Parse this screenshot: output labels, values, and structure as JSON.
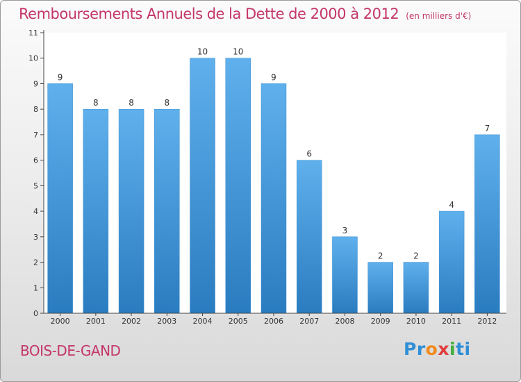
{
  "header": {
    "title": "Remboursements Annuels de la Dette de 2000 à 2012",
    "unit": "(en milliers d'€)"
  },
  "footer": {
    "entity": "BOIS-DE-GAND",
    "logo": [
      "Pr",
      "o",
      "x",
      "i",
      "ti"
    ]
  },
  "colors": {
    "title": "#c4366a",
    "bar_light": "#5fb0ec",
    "bar_dark": "#2a7cc0",
    "plot_background": "#ffffff"
  },
  "chart_data": {
    "type": "bar",
    "title": "Remboursements Annuels de la Dette de 2000 à 2012",
    "xlabel": "",
    "ylabel": "",
    "categories": [
      "2000",
      "2001",
      "2002",
      "2003",
      "2004",
      "2005",
      "2006",
      "2007",
      "2008",
      "2009",
      "2010",
      "2011",
      "2012"
    ],
    "values": [
      9,
      8,
      8,
      8,
      10,
      10,
      9,
      6,
      3,
      2,
      2,
      4,
      7
    ],
    "ylim": [
      0,
      11
    ],
    "yticks": [
      "0",
      "1",
      "2",
      "3",
      "4",
      "5",
      "6",
      "7",
      "8",
      "9",
      "10",
      "11"
    ],
    "grid": false,
    "legend": "none"
  }
}
